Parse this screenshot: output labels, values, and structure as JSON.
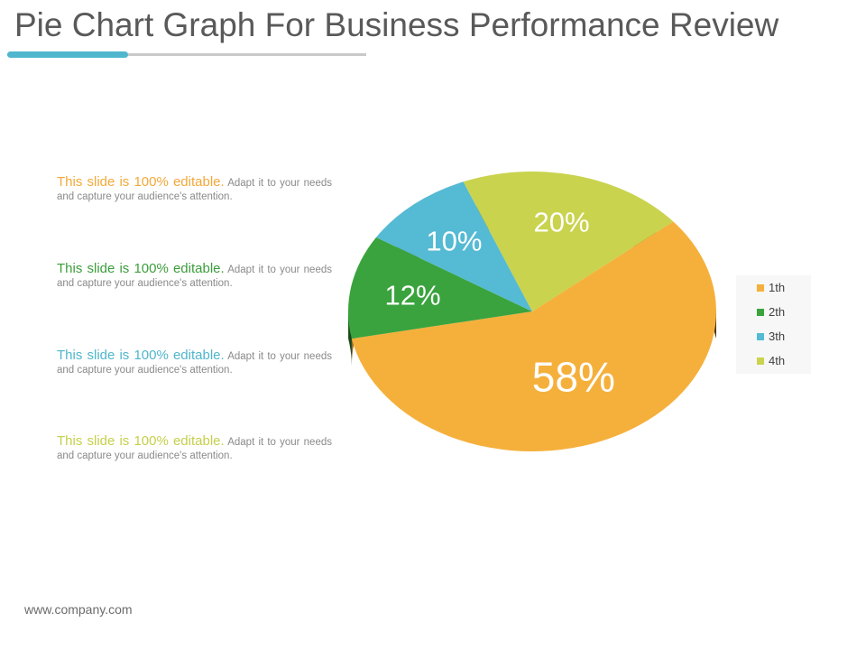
{
  "slide": {
    "title": "Pie Chart Graph For Business Performance Review",
    "footer": "www.company.com"
  },
  "blurbs": [
    {
      "highlight": "This slide is 100% editable.",
      "text": "Adapt it to your needs and capture your audience's attention.",
      "color": "#f3a83a"
    },
    {
      "highlight": "This slide is 100% editable.",
      "text": "Adapt it to your needs and capture your audience's attention.",
      "color": "#3b9e3a"
    },
    {
      "highlight": "This slide is 100% editable.",
      "text": "Adapt it to your needs and capture your audience's attention.",
      "color": "#4fb6cd"
    },
    {
      "highlight": "This slide is 100% editable.",
      "text": "Adapt it to your needs and capture your audience's attention.",
      "color": "#c5cf4a"
    }
  ],
  "chart_data": {
    "type": "pie",
    "style": "3d",
    "title": "",
    "categories": [
      "1th",
      "2th",
      "3th",
      "4th"
    ],
    "values": [
      58,
      12,
      10,
      20
    ],
    "data_labels": [
      "58%",
      "12%",
      "10%",
      "20%"
    ],
    "colors": [
      "#f5b03c",
      "#3aa33d",
      "#55bad3",
      "#c9d34e"
    ],
    "legend_position": "right"
  }
}
